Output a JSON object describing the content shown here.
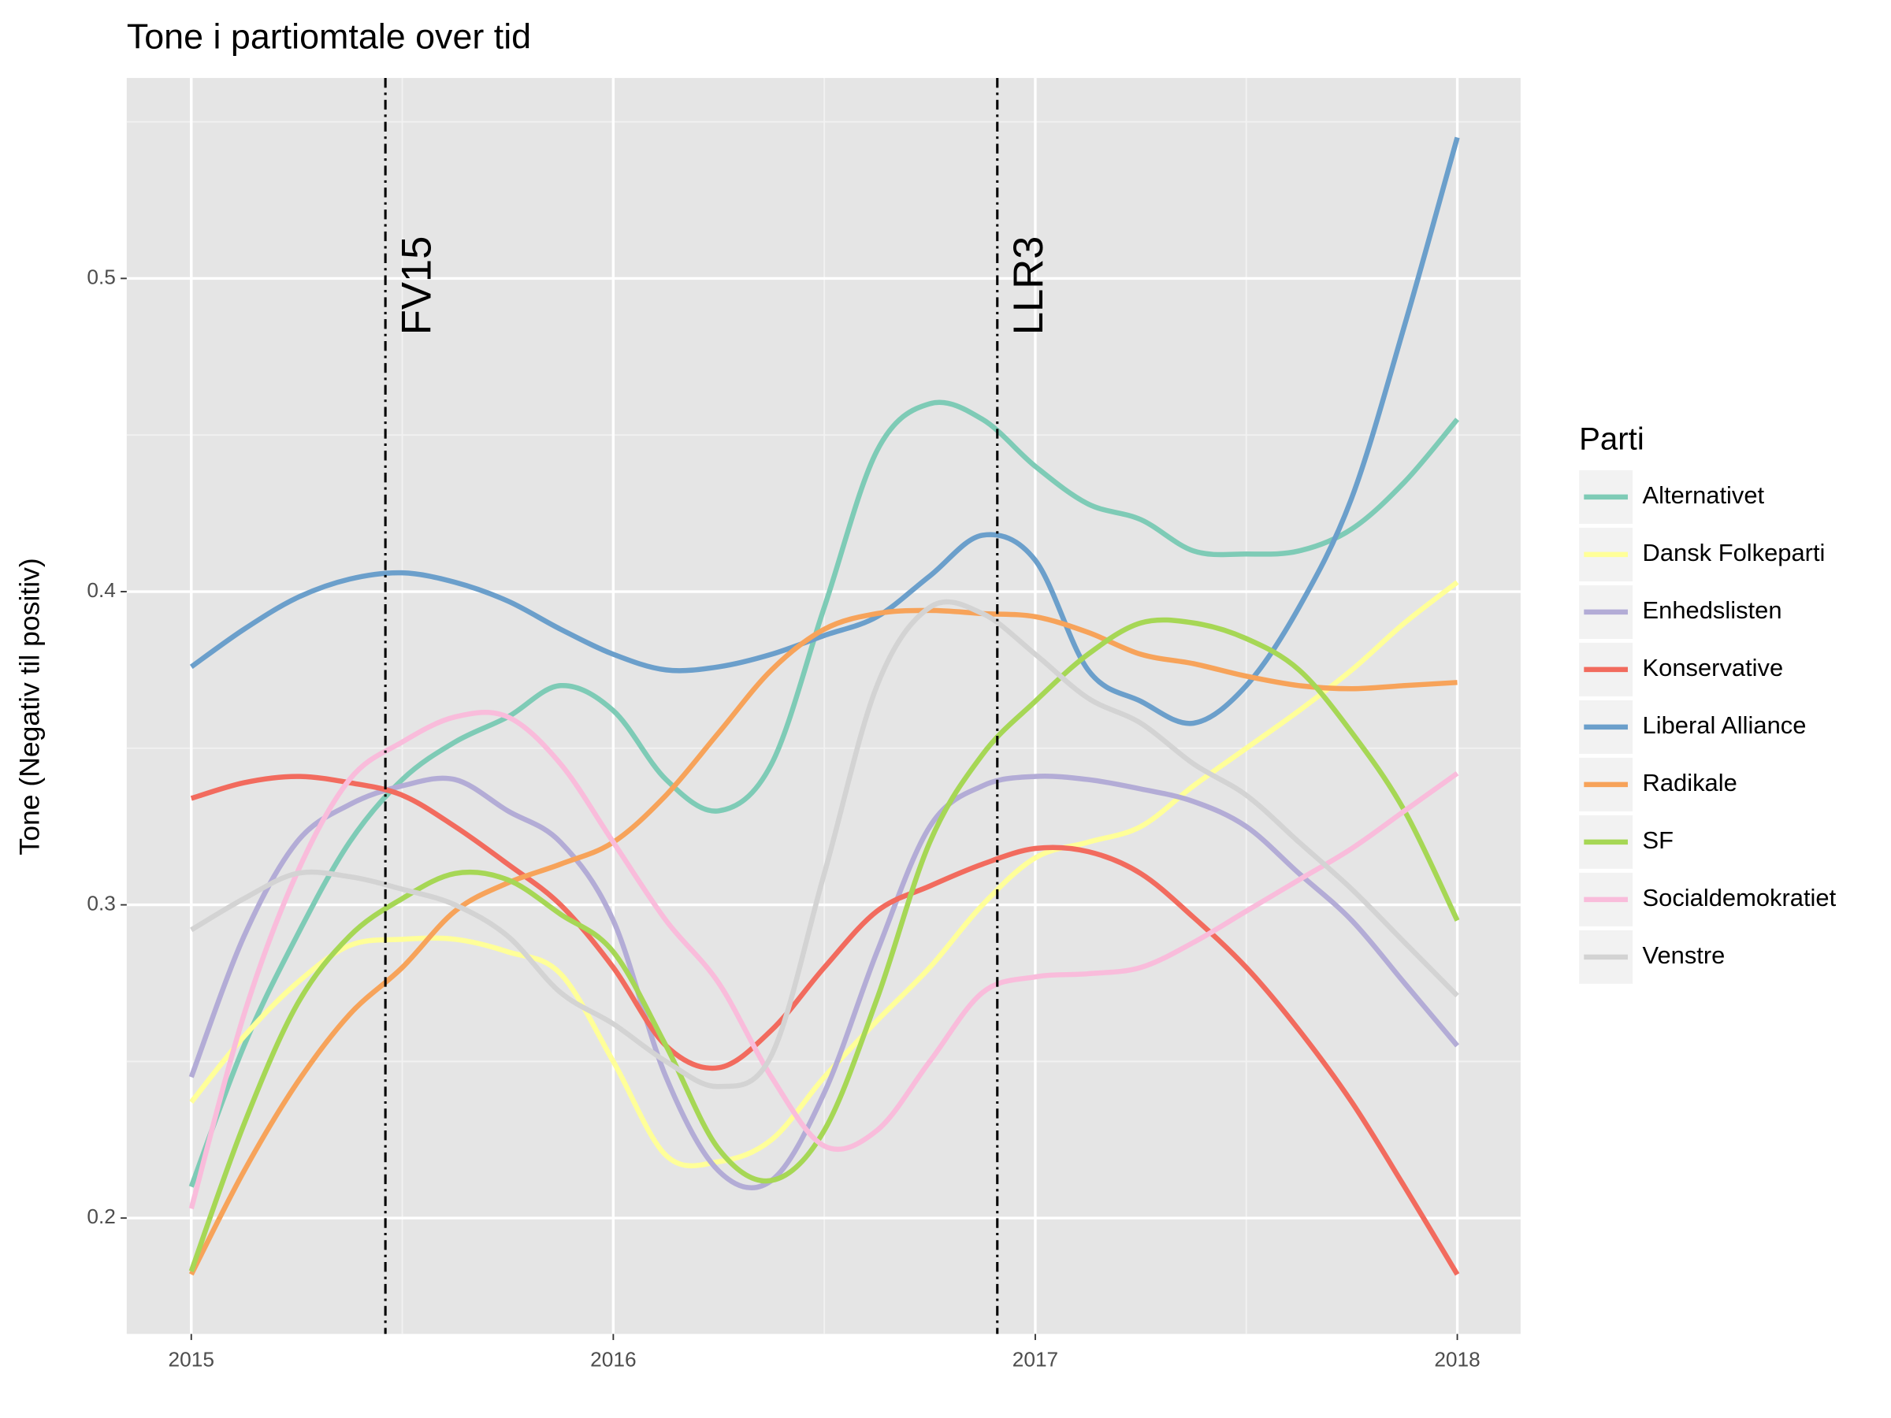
{
  "chart_data": {
    "type": "line",
    "title": "Tone i partiomtale over tid",
    "y_label": "Tone (Negativ til positiv)",
    "legend_title": "Parti",
    "legend_position": "right",
    "grid": true,
    "xlim": [
      2014.847,
      2018.15
    ],
    "ylim": [
      0.163,
      0.564
    ],
    "xticks": [
      2015,
      2016,
      2017,
      2018
    ],
    "xminor_ticks": [
      2015.5,
      2016.5,
      2017.5
    ],
    "yticks": [
      0.2,
      0.3,
      0.4,
      0.5
    ],
    "yminor_ticks": [
      0.25,
      0.35,
      0.45,
      0.55
    ],
    "x": [
      2015,
      2015.125,
      2015.25,
      2015.375,
      2015.5,
      2015.625,
      2015.75,
      2015.875,
      2016,
      2016.125,
      2016.25,
      2016.375,
      2016.5,
      2016.625,
      2016.75,
      2016.875,
      2017,
      2017.125,
      2017.25,
      2017.375,
      2017.5,
      2017.625,
      2017.75,
      2017.875,
      2018
    ],
    "annotations": [
      {
        "x": 2015.46,
        "text": "FV15"
      },
      {
        "x": 2016.91,
        "text": "LLR3"
      }
    ],
    "series": [
      {
        "name": "Alternativet",
        "color": "#7ecbb6",
        "values": [
          0.21,
          0.255,
          0.29,
          0.32,
          0.34,
          0.352,
          0.36,
          0.37,
          0.362,
          0.34,
          0.33,
          0.345,
          0.395,
          0.445,
          0.46,
          0.455,
          0.44,
          0.428,
          0.423,
          0.413,
          0.412,
          0.413,
          0.42,
          0.435,
          0.455
        ]
      },
      {
        "name": "Dansk Folkeparti",
        "color": "#ffff99",
        "values": [
          0.237,
          0.258,
          0.275,
          0.287,
          0.289,
          0.289,
          0.285,
          0.278,
          0.25,
          0.22,
          0.218,
          0.225,
          0.245,
          0.263,
          0.28,
          0.3,
          0.315,
          0.32,
          0.325,
          0.338,
          0.35,
          0.362,
          0.375,
          0.39,
          0.403
        ]
      },
      {
        "name": "Enhedslisten",
        "color": "#b3acd6",
        "values": [
          0.245,
          0.29,
          0.32,
          0.332,
          0.338,
          0.34,
          0.33,
          0.32,
          0.295,
          0.245,
          0.215,
          0.212,
          0.24,
          0.285,
          0.325,
          0.338,
          0.341,
          0.34,
          0.337,
          0.333,
          0.325,
          0.31,
          0.295,
          0.275,
          0.255
        ]
      },
      {
        "name": "Konservative",
        "color": "#f26b5e",
        "values": [
          0.334,
          0.339,
          0.341,
          0.339,
          0.335,
          0.325,
          0.313,
          0.3,
          0.28,
          0.255,
          0.248,
          0.26,
          0.28,
          0.298,
          0.306,
          0.313,
          0.318,
          0.317,
          0.31,
          0.296,
          0.28,
          0.26,
          0.237,
          0.21,
          0.182
        ]
      },
      {
        "name": "Liberal Alliance",
        "color": "#6b9fcb",
        "values": [
          0.376,
          0.388,
          0.398,
          0.404,
          0.406,
          0.403,
          0.397,
          0.388,
          0.38,
          0.375,
          0.376,
          0.38,
          0.386,
          0.392,
          0.405,
          0.418,
          0.41,
          0.375,
          0.365,
          0.358,
          0.37,
          0.395,
          0.43,
          0.485,
          0.545
        ]
      },
      {
        "name": "Radikale",
        "color": "#f7a35a",
        "values": [
          0.182,
          0.215,
          0.243,
          0.265,
          0.28,
          0.298,
          0.307,
          0.313,
          0.32,
          0.335,
          0.355,
          0.375,
          0.388,
          0.393,
          0.394,
          0.393,
          0.392,
          0.387,
          0.38,
          0.377,
          0.373,
          0.37,
          0.369,
          0.37,
          0.371
        ]
      },
      {
        "name": "SF",
        "color": "#a6d755",
        "values": [
          0.183,
          0.23,
          0.268,
          0.29,
          0.302,
          0.31,
          0.308,
          0.297,
          0.285,
          0.255,
          0.222,
          0.212,
          0.228,
          0.27,
          0.32,
          0.348,
          0.365,
          0.38,
          0.39,
          0.39,
          0.385,
          0.375,
          0.355,
          0.33,
          0.295
        ]
      },
      {
        "name": "Socialdemokratiet",
        "color": "#f9bcdb",
        "values": [
          0.203,
          0.265,
          0.31,
          0.34,
          0.352,
          0.36,
          0.36,
          0.345,
          0.32,
          0.295,
          0.275,
          0.245,
          0.223,
          0.228,
          0.25,
          0.272,
          0.277,
          0.278,
          0.28,
          0.288,
          0.298,
          0.308,
          0.318,
          0.33,
          0.342
        ]
      },
      {
        "name": "Venstre",
        "color": "#d3d3d3",
        "values": [
          0.292,
          0.302,
          0.31,
          0.309,
          0.305,
          0.3,
          0.29,
          0.272,
          0.262,
          0.25,
          0.242,
          0.252,
          0.31,
          0.37,
          0.395,
          0.393,
          0.38,
          0.366,
          0.358,
          0.345,
          0.335,
          0.32,
          0.305,
          0.288,
          0.271
        ]
      }
    ]
  }
}
